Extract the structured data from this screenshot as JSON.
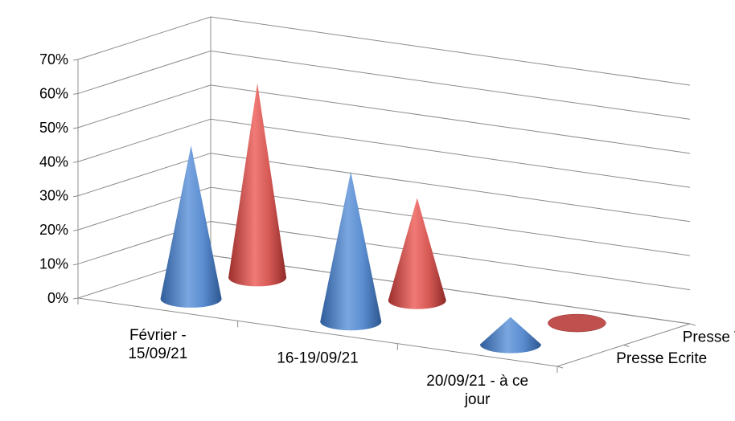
{
  "chart_data": {
    "type": "bar",
    "subtype": "3d-cone",
    "title": "",
    "xlabel": "",
    "ylabel": "",
    "ylim": [
      0,
      0.7
    ],
    "y_ticks": [
      "0%",
      "10%",
      "20%",
      "30%",
      "40%",
      "50%",
      "60%",
      "70%"
    ],
    "categories": [
      [
        "Février -",
        "15/09/21"
      ],
      [
        "16-19/09/21"
      ],
      [
        "20/09/21 - à ce",
        "jour"
      ]
    ],
    "series": [
      {
        "name": "Presse Ecrite",
        "color": "#4f81bd",
        "values": [
          0.45,
          0.44,
          0.08
        ]
      },
      {
        "name": "Presse Web",
        "color": "#c0504d",
        "values": [
          0.57,
          0.3,
          0.0
        ]
      }
    ],
    "grid": true,
    "legend": "depth-axis-right"
  }
}
